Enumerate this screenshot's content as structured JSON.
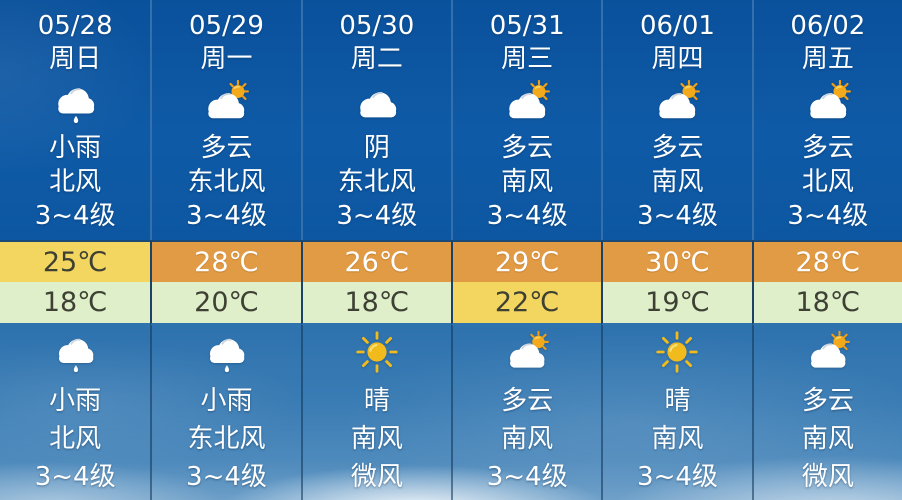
{
  "colors": {
    "panel_blue": "#0d57a2",
    "sky_bottom_blue": "#3a7cb4",
    "divider_top_section": "#3470ae",
    "divider_temp_rows": "#1d4268",
    "divider_night_section": "#1e4a74",
    "high_temp_hot_bg": "#e29b45",
    "warm_yellow_bg": "#f3d65f",
    "low_temp_cool_bg": "#deefca",
    "text_light": "#ffffff",
    "text_dark": "#3e4033",
    "sun_yellow": "#f2bb1d",
    "cloud_white": "#ffffff"
  },
  "days": [
    {
      "date": "05/28",
      "weekday": "周日",
      "day_icon": "light-rain",
      "day_cond": "小雨",
      "day_wind": "北风",
      "day_power": "3~4级",
      "high_val": "25℃",
      "high_bg": "#f3d65f",
      "high_text": "dark",
      "low_val": "18℃",
      "low_bg": "#deefca",
      "low_text": "dark",
      "night_icon": "light-rain",
      "night_cond": "小雨",
      "night_wind": "北风",
      "night_power": "3~4级"
    },
    {
      "date": "05/29",
      "weekday": "周一",
      "day_icon": "partly-cloudy",
      "day_cond": "多云",
      "day_wind": "东北风",
      "day_power": "3~4级",
      "high_val": "28℃",
      "high_bg": "#e29b45",
      "high_text": "light",
      "low_val": "20℃",
      "low_bg": "#deefca",
      "low_text": "dark",
      "night_icon": "light-rain",
      "night_cond": "小雨",
      "night_wind": "东北风",
      "night_power": "3~4级"
    },
    {
      "date": "05/30",
      "weekday": "周二",
      "day_icon": "overcast",
      "day_cond": "阴",
      "day_wind": "东北风",
      "day_power": "3~4级",
      "high_val": "26℃",
      "high_bg": "#e29b45",
      "high_text": "light",
      "low_val": "18℃",
      "low_bg": "#deefca",
      "low_text": "dark",
      "night_icon": "sunny",
      "night_cond": "晴",
      "night_wind": "南风",
      "night_power": "微风"
    },
    {
      "date": "05/31",
      "weekday": "周三",
      "day_icon": "partly-cloudy",
      "day_cond": "多云",
      "day_wind": "南风",
      "day_power": "3~4级",
      "high_val": "29℃",
      "high_bg": "#e29b45",
      "high_text": "light",
      "low_val": "22℃",
      "low_bg": "#f3d65f",
      "low_text": "dark",
      "night_icon": "partly-cloudy",
      "night_cond": "多云",
      "night_wind": "南风",
      "night_power": "3~4级"
    },
    {
      "date": "06/01",
      "weekday": "周四",
      "day_icon": "partly-cloudy",
      "day_cond": "多云",
      "day_wind": "南风",
      "day_power": "3~4级",
      "high_val": "30℃",
      "high_bg": "#e29b45",
      "high_text": "light",
      "low_val": "19℃",
      "low_bg": "#deefca",
      "low_text": "dark",
      "night_icon": "sunny",
      "night_cond": "晴",
      "night_wind": "南风",
      "night_power": "3~4级"
    },
    {
      "date": "06/02",
      "weekday": "周五",
      "day_icon": "partly-cloudy",
      "day_cond": "多云",
      "day_wind": "北风",
      "day_power": "3~4级",
      "high_val": "28℃",
      "high_bg": "#e29b45",
      "high_text": "light",
      "low_val": "18℃",
      "low_bg": "#deefca",
      "low_text": "dark",
      "night_icon": "partly-cloudy",
      "night_cond": "多云",
      "night_wind": "南风",
      "night_power": "微风"
    }
  ]
}
